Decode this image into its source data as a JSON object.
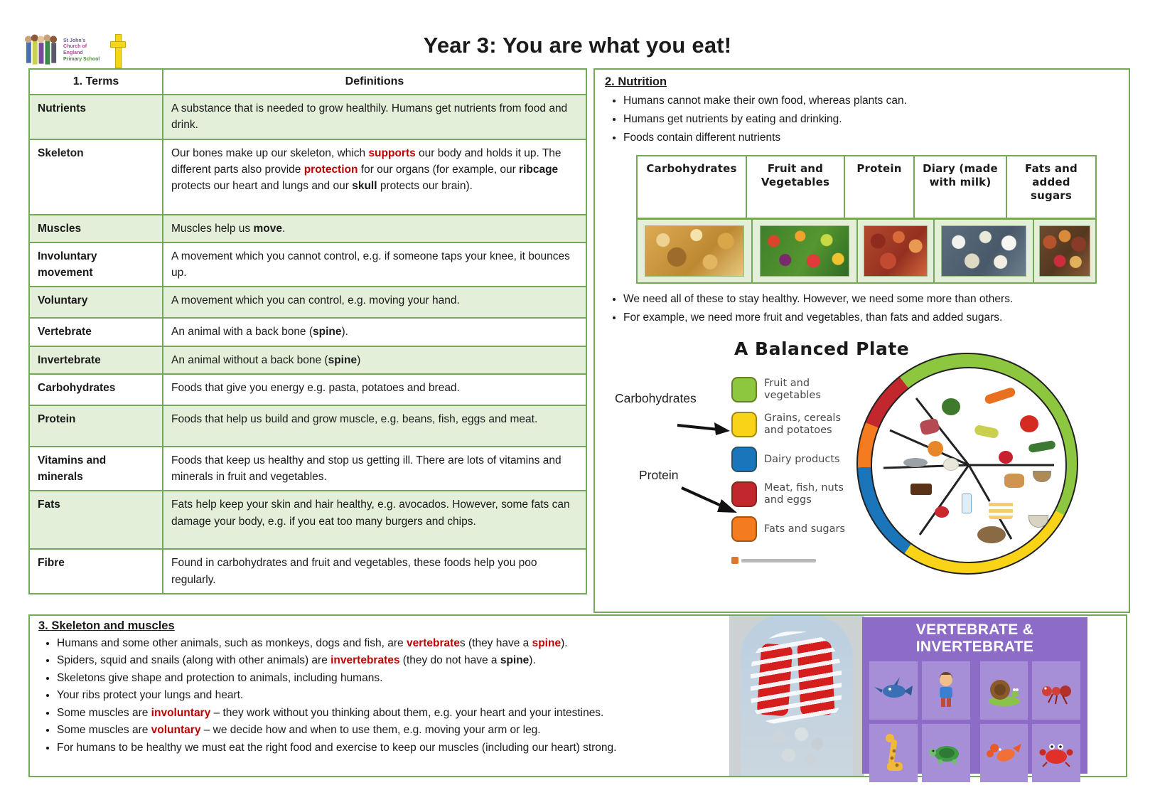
{
  "colors": {
    "red_text": "#C00000",
    "table_green": "#76A85C",
    "row_green": "#E3EFD9"
  },
  "header": {
    "title": "Year 3: You are what you eat!",
    "logo": {
      "line1": "St John's",
      "line2": "Church of England",
      "line3": "Primary School"
    }
  },
  "terms_table": {
    "header": {
      "terms": "1. Terms",
      "definitions": "Definitions"
    },
    "rows": [
      {
        "term": "Nutrients",
        "def": [
          {
            "t": "A substance that is needed to grow healthily. Humans get nutrients from food and drink."
          }
        ]
      },
      {
        "term": "Skeleton",
        "def": [
          {
            "t": "Our bones make up our skeleton, which "
          },
          {
            "t": "supports",
            "b": 1,
            "r": 1
          },
          {
            "t": " our body and holds it up. The different parts also provide "
          },
          {
            "t": "protection",
            "b": 1,
            "r": 1
          },
          {
            "t": " for our organs (for example, our "
          },
          {
            "t": "ribcage",
            "b": 1
          },
          {
            "t": " protects our heart and lungs and our "
          },
          {
            "t": "skull",
            "b": 1
          },
          {
            "t": " protects our brain)."
          }
        ]
      },
      {
        "term": "Muscles",
        "def": [
          {
            "t": "Muscles help us "
          },
          {
            "t": "move",
            "b": 1
          },
          {
            "t": "."
          }
        ]
      },
      {
        "term": "Involuntary movement",
        "def": [
          {
            "t": "A movement which you cannot control, e.g. if someone taps your knee, it bounces up."
          }
        ]
      },
      {
        "term": "Voluntary",
        "def": [
          {
            "t": "A movement which you can control, e.g. moving your hand."
          }
        ]
      },
      {
        "term": "Vertebrate",
        "def": [
          {
            "t": "An animal with a back bone ("
          },
          {
            "t": "spine",
            "b": 1
          },
          {
            "t": ")."
          }
        ]
      },
      {
        "term": "Invertebrate",
        "def": [
          {
            "t": "An animal without a back bone ("
          },
          {
            "t": "spine",
            "b": 1
          },
          {
            "t": ")"
          }
        ]
      },
      {
        "term": "Carbohydrates",
        "def": [
          {
            "t": "Foods that give you energy e.g. pasta, potatoes and bread."
          }
        ]
      },
      {
        "term": "Protein",
        "def": [
          {
            "t": "Foods that help us build and grow muscle, e.g. beans, fish, eggs and meat."
          }
        ]
      },
      {
        "term": "Vitamins and minerals",
        "def": [
          {
            "t": "Foods that keep us healthy and stop us getting ill. There are lots of vitamins and minerals in fruit and vegetables."
          }
        ]
      },
      {
        "term": "Fats",
        "def": [
          {
            "t": "Fats help keep your skin and hair healthy, e.g. avocados. However, some fats can damage your body, e.g. if you eat too many burgers and chips."
          }
        ]
      },
      {
        "term": "Fibre",
        "def": [
          {
            "t": "Found in carbohydrates and fruit and vegetables, these foods help you poo regularly."
          }
        ]
      }
    ]
  },
  "nutrition": {
    "heading": "2. Nutrition",
    "bullets": [
      "Humans cannot make their own food, whereas plants can.",
      "Humans get nutrients by eating and drinking.",
      "Foods contain different nutrients"
    ],
    "food_groups": [
      "Carbohydrates",
      "Fruit and Vegetables",
      "Protein",
      "Diary (made with milk)",
      "Fats and added sugars"
    ],
    "bullets2": [
      "We need all of these to stay healthy. However, we need some more than others.",
      "For example, we need more fruit and vegetables, than fats and added sugars."
    ]
  },
  "plate": {
    "title": "A Balanced Plate",
    "label_carbohydrates": "Carbohydrates",
    "label_protein": "Protein",
    "legend": [
      {
        "label": "Fruit and vegetables",
        "color": "#8dc63f"
      },
      {
        "label": "Grains, cereals and potatoes",
        "color": "#f8d317"
      },
      {
        "label": "Dairy products",
        "color": "#1b75bb"
      },
      {
        "label": "Meat, fish, nuts and eggs",
        "color": "#c1272d"
      },
      {
        "label": "Fats and sugars",
        "color": "#f47b20"
      }
    ]
  },
  "skeleton_section": {
    "heading": "3. Skeleton and muscles",
    "bullets": [
      [
        {
          "t": "Humans and some other animals, such as monkeys, dogs and fish, are "
        },
        {
          "t": "vertebrate",
          "b": 1,
          "r": 1
        },
        {
          "t": "s (they have a "
        },
        {
          "t": "spine",
          "b": 1,
          "r": 1
        },
        {
          "t": ")."
        }
      ],
      [
        {
          "t": "Spiders, squid and snails (along with other animals) are "
        },
        {
          "t": "invertebrates",
          "b": 1,
          "r": 1
        },
        {
          "t": " (they do not have a "
        },
        {
          "t": "spine",
          "b": 1
        },
        {
          "t": ")."
        }
      ],
      [
        {
          "t": "Skeletons give shape and protection to animals, including humans."
        }
      ],
      [
        {
          "t": "Your ribs protect your lungs and heart."
        }
      ],
      [
        {
          "t": "Some muscles are "
        },
        {
          "t": "involuntary",
          "b": 1,
          "r": 1
        },
        {
          "t": " – they work without you thinking about them, e.g. your heart and your intestines."
        }
      ],
      [
        {
          "t": "Some muscles are "
        },
        {
          "t": "voluntary",
          "b": 1,
          "r": 1
        },
        {
          "t": " – we decide how and when to use them, e.g. moving your arm or leg."
        }
      ],
      [
        {
          "t": "For humans to be healthy we must eat the right food and exercise to keep our muscles (including our heart) strong."
        }
      ]
    ]
  },
  "poster": {
    "title": "VERTEBRATE & INVERTEBRATE"
  }
}
